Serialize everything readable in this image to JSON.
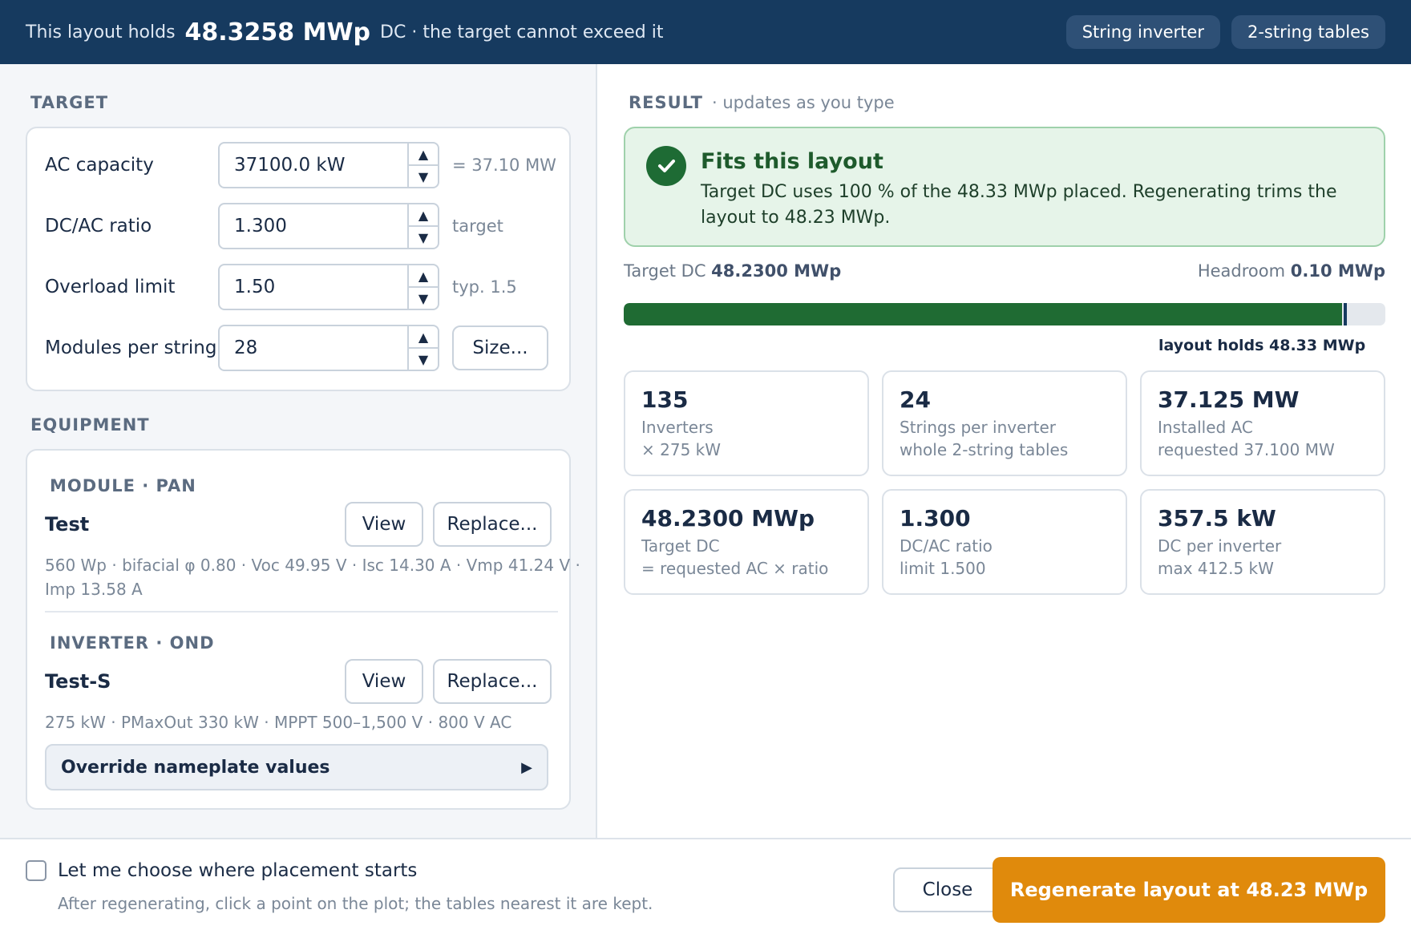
{
  "header": {
    "hold_prefix": "This layout holds",
    "hold_value": "48.3258 MWp",
    "hold_suffix": "DC · the target cannot exceed it",
    "chips": [
      "String inverter",
      "2-string tables"
    ]
  },
  "target": {
    "section_label": "TARGET",
    "fields": [
      {
        "label": "AC capacity",
        "value": "37100.0 kW",
        "hint": "= 37.10 MW"
      },
      {
        "label": "DC/AC ratio",
        "value": "1.300",
        "hint": "target"
      },
      {
        "label": "Overload limit",
        "value": "1.50",
        "hint": "typ. 1.5"
      },
      {
        "label": "Modules per string",
        "value": "28",
        "button": "Size..."
      }
    ]
  },
  "equipment": {
    "section_label": "EQUIPMENT",
    "module": {
      "label": "MODULE · PAN",
      "name": "Test",
      "view": "View",
      "replace": "Replace...",
      "spec": "560 Wp · bifacial φ 0.80 · Voc 49.95 V · Isc 14.30 A · Vmp 41.24 V · Imp 13.58 A"
    },
    "inverter": {
      "label": "INVERTER · OND",
      "name": "Test-S",
      "view": "View",
      "replace": "Replace...",
      "spec": "275 kW · PMaxOut 330 kW · MPPT 500–1,500 V · 800 V AC"
    },
    "override": "Override nameplate values"
  },
  "result": {
    "label": "RESULT",
    "sub": "· updates as you type",
    "fit_title": "Fits this layout",
    "fit_body": "Target DC uses 100 % of the 48.33 MWp placed. Regenerating trims the layout to 48.23 MWp.",
    "target_dc_label": "Target DC",
    "target_dc_value": "48.2300 MWp",
    "headroom_label": "Headroom",
    "headroom_value": "0.10 MWp",
    "bar_fill_fraction": 0.9435,
    "bar_marker_fraction": 0.9453,
    "bar_caption": "layout holds 48.33 MWp",
    "stats": [
      {
        "value": "135",
        "label": "Inverters",
        "sub": "× 275 kW"
      },
      {
        "value": "24",
        "label": "Strings per inverter",
        "sub": "whole 2-string tables"
      },
      {
        "value": "37.125 MW",
        "label": "Installed AC",
        "sub": "requested 37.100 MW"
      },
      {
        "value": "48.2300 MWp",
        "label": "Target DC",
        "sub": "= requested AC × ratio"
      },
      {
        "value": "1.300",
        "label": "DC/AC ratio",
        "sub": "limit 1.500"
      },
      {
        "value": "357.5 kW",
        "label": "DC per inverter",
        "sub": "max 412.5 kW"
      }
    ]
  },
  "footer": {
    "checkbox_label": "Let me choose where placement starts",
    "checkbox_help": "After regenerating, click a point on the plot; the tables nearest it are kept.",
    "checkbox_checked": false,
    "close": "Close",
    "regenerate": "Regenerate layout at 48.23 MWp"
  }
}
